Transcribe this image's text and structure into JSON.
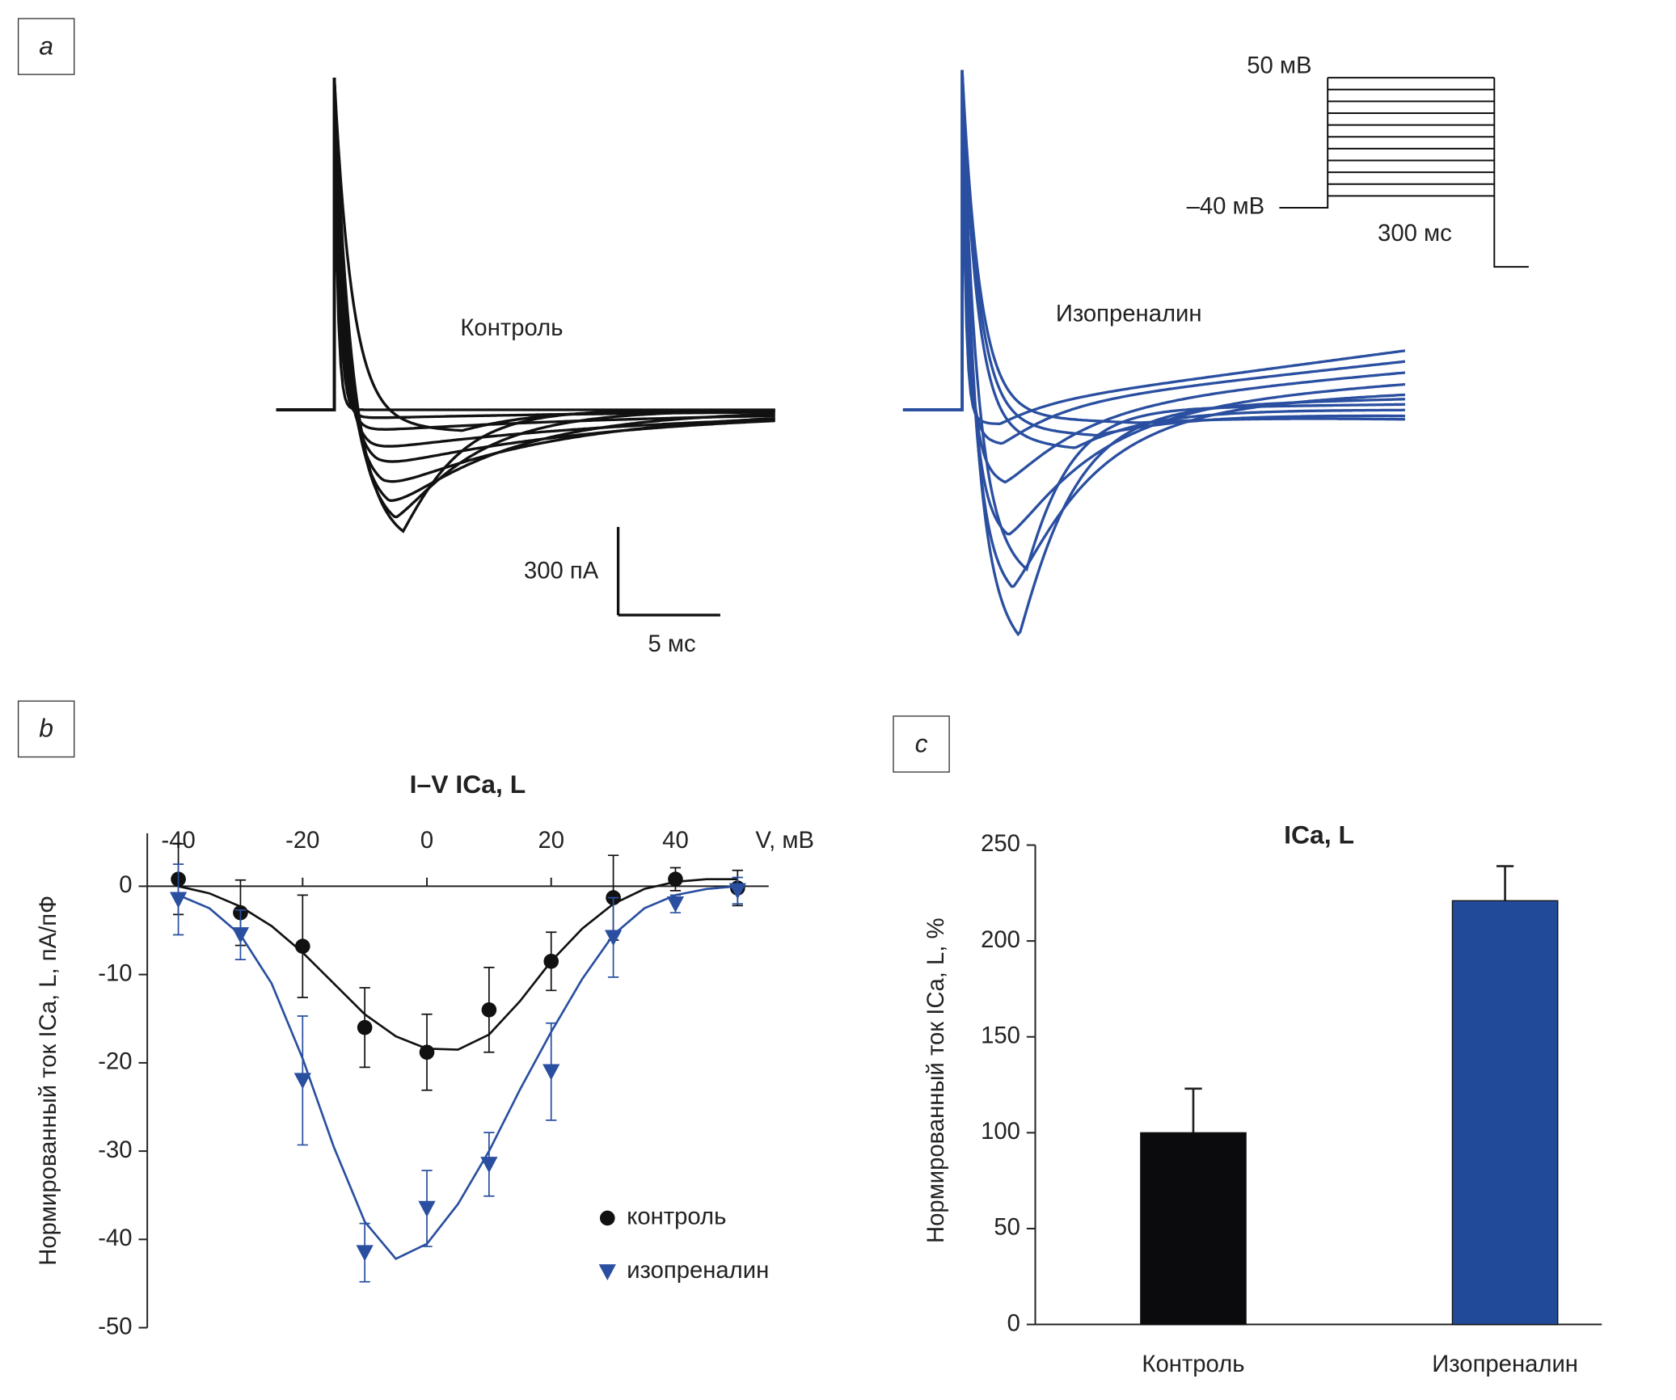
{
  "panel_a": {
    "label": "a",
    "control_label": "Контроль",
    "iso_label": "Изопреналин",
    "scale_current": "300 пА",
    "scale_time": "5 мс",
    "protocol_top": "50 мВ",
    "protocol_bottom": "–40 мВ",
    "protocol_duration": "300 мс"
  },
  "chart_data": [
    {
      "type": "scatter",
      "panel_label": "b",
      "title": "I–V ICa, L",
      "x_label": "V, мВ",
      "y_label": "Нормированный ток ICa, L, пА/пФ",
      "x": [
        -40,
        -30,
        -20,
        -10,
        0,
        10,
        20,
        30,
        40,
        50
      ],
      "xlim": [
        -45,
        55
      ],
      "xticks": [
        -40,
        -20,
        0,
        20,
        40
      ],
      "ylim": [
        -50,
        6
      ],
      "yticks": [
        -50,
        -40,
        -30,
        -20,
        -10,
        0
      ],
      "fit_x": [
        -40,
        -35,
        -30,
        -25,
        -20,
        -15,
        -10,
        -5,
        0,
        5,
        10,
        15,
        20,
        25,
        30,
        35,
        40,
        45,
        50
      ],
      "series": [
        {
          "name": "контроль",
          "color": "#111111",
          "marker": "circle",
          "values": [
            0.8,
            -3,
            -6.8,
            -16,
            -18.8,
            -14,
            -8.5,
            -1.3,
            0.8,
            -0.2
          ],
          "errors": [
            4,
            3.7,
            5.8,
            4.5,
            4.3,
            4.8,
            3.3,
            4.8,
            1.3,
            2
          ],
          "fit": [
            0,
            -0.8,
            -2.3,
            -4.5,
            -7.5,
            -11,
            -14.5,
            -17,
            -18.4,
            -18.5,
            -16.8,
            -13,
            -8.5,
            -4.8,
            -2,
            -0.3,
            0.5,
            0.8,
            0.8
          ]
        },
        {
          "name": "изопреналин",
          "color": "#2a4fa0",
          "marker": "triangle-down",
          "values": [
            -1.5,
            -5.5,
            -22,
            -41.5,
            -36.5,
            -31.5,
            -21,
            -5.8,
            -2,
            -0.5
          ],
          "errors": [
            4,
            2.8,
            7.3,
            3.3,
            4.3,
            3.6,
            5.5,
            4.5,
            1,
            1.5
          ],
          "fit": [
            -1,
            -2.5,
            -5.5,
            -11,
            -19.5,
            -29.5,
            -38,
            -42.2,
            -40.5,
            -36,
            -30,
            -23,
            -16.5,
            -10.5,
            -5.5,
            -2.5,
            -1,
            -0.3,
            0
          ]
        }
      ],
      "legend": "lower right"
    },
    {
      "type": "bar",
      "panel_label": "c",
      "title": "ICa, L",
      "y_label": "Нормированный ток ICa, L, %",
      "categories": [
        "Контроль",
        "Изопреналин"
      ],
      "values": [
        100,
        221
      ],
      "errors": [
        23,
        18
      ],
      "colors": [
        "#0b0b0d",
        "#214b98"
      ],
      "ylim": [
        0,
        250
      ],
      "yticks": [
        0,
        50,
        100,
        150,
        200,
        250
      ]
    }
  ]
}
